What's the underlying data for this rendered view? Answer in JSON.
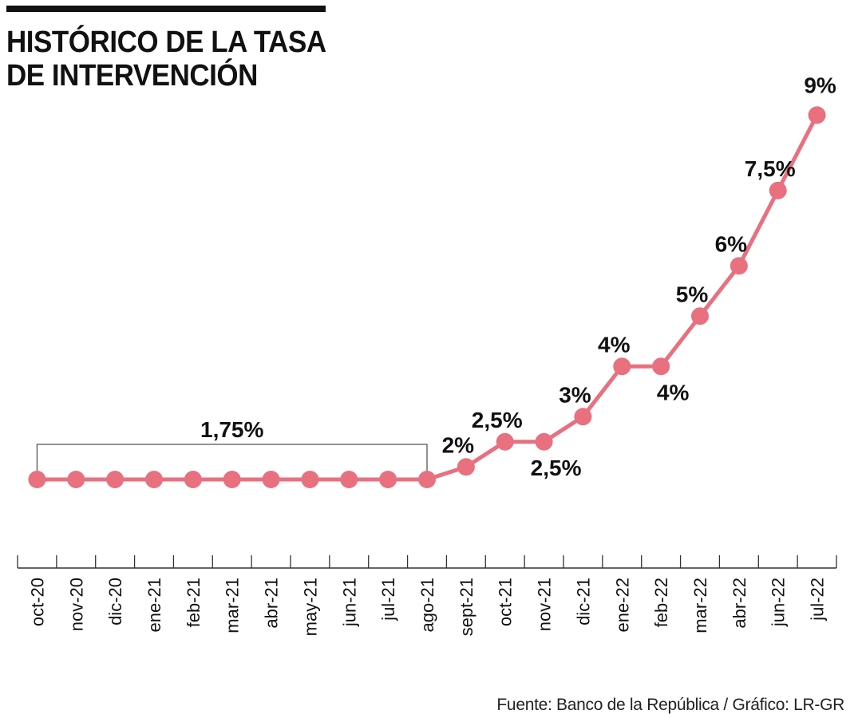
{
  "title_lines": [
    "HISTÓRICO DE LA TASA",
    "DE INTERVENCIÓN"
  ],
  "source": "Fuente: Banco de la República / Gráfico: LR-GR",
  "colors": {
    "series": "#e8707f",
    "text": "#111111",
    "axis": "#333333",
    "bracket": "#555555"
  },
  "chart_data": {
    "type": "line",
    "title": "HISTÓRICO DE LA TASA DE INTERVENCIÓN",
    "xlabel": "",
    "ylabel": "",
    "grid": false,
    "legend": "none",
    "x": [
      "oct-20",
      "nov-20",
      "dic-20",
      "ene-21",
      "feb-21",
      "mar-21",
      "abr-21",
      "may-21",
      "jun-21",
      "jul-21",
      "ago-21",
      "sept-21",
      "oct-21",
      "nov-21",
      "dic-21",
      "ene-22",
      "feb-22",
      "mar-22",
      "abr-22",
      "jun-22",
      "jul-22"
    ],
    "series": [
      {
        "values": [
          1.75,
          1.75,
          1.75,
          1.75,
          1.75,
          1.75,
          1.75,
          1.75,
          1.75,
          1.75,
          1.75,
          2,
          2.5,
          2.5,
          3,
          4,
          4,
          5,
          6,
          7.5,
          9
        ]
      }
    ],
    "annotations": [
      {
        "text": "1,75%",
        "from_index": 0,
        "to_index": 10,
        "style": "bracket"
      },
      {
        "text": "2%",
        "index": 11,
        "position": "above"
      },
      {
        "text": "2,5%",
        "index": 12,
        "position": "above"
      },
      {
        "text": "2,5%",
        "index": 13,
        "position": "below"
      },
      {
        "text": "3%",
        "index": 14,
        "position": "above"
      },
      {
        "text": "4%",
        "index": 15,
        "position": "above"
      },
      {
        "text": "4%",
        "index": 16,
        "position": "below"
      },
      {
        "text": "5%",
        "index": 17,
        "position": "above"
      },
      {
        "text": "6%",
        "index": 18,
        "position": "above"
      },
      {
        "text": "7,5%",
        "index": 19,
        "position": "above"
      },
      {
        "text": "9%",
        "index": 20,
        "position": "above"
      }
    ]
  }
}
